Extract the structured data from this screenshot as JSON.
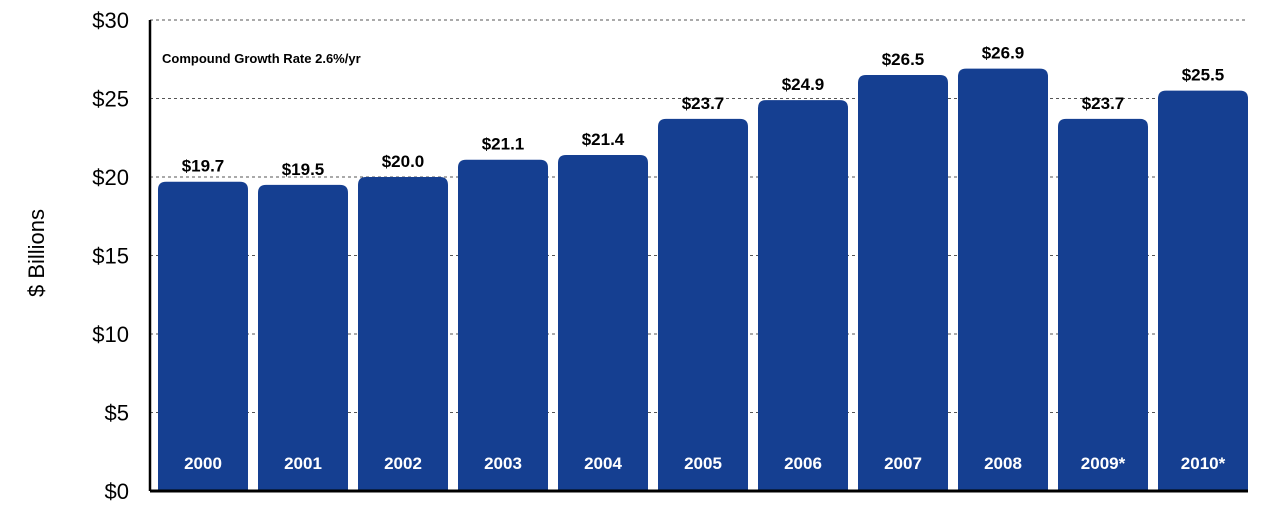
{
  "chart_data": {
    "type": "bar",
    "categories": [
      "2000",
      "2001",
      "2002",
      "2003",
      "2004",
      "2005",
      "2006",
      "2007",
      "2008",
      "2009*",
      "2010*"
    ],
    "values": [
      19.7,
      19.5,
      20.0,
      21.1,
      21.4,
      23.7,
      24.9,
      26.5,
      26.9,
      23.7,
      25.5
    ],
    "value_labels": [
      "$19.7",
      "$19.5",
      "$20.0",
      "$21.1",
      "$21.4",
      "$23.7",
      "$24.9",
      "$26.5",
      "$26.9",
      "$23.7",
      "$25.5"
    ],
    "ylabel": "$ Billions",
    "ylim": [
      0,
      30
    ],
    "yticks": [
      0,
      5,
      10,
      15,
      20,
      25,
      30
    ],
    "ytick_labels": [
      "$0",
      "$5",
      "$10",
      "$15",
      "$20",
      "$25",
      "$30"
    ],
    "annotation": "Compound Growth Rate 2.6%/yr",
    "grid": "horizontal dashed",
    "bar_color": "#153f91",
    "category_label_color": "#ffffff"
  }
}
